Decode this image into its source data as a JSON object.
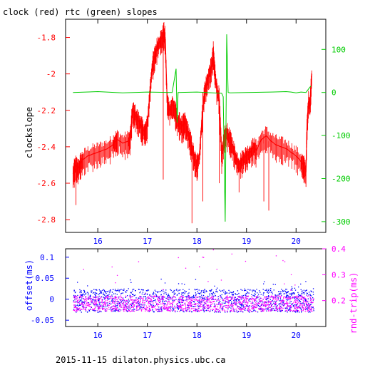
{
  "chart_data": [
    {
      "type": "line",
      "title": "clock (red) rtc (green) slopes",
      "xlabel": "",
      "ylabel": "clockslope",
      "xlim": [
        15.35,
        20.6
      ],
      "ylim": [
        -2.87,
        -1.7
      ],
      "xticks": [
        16,
        17,
        18,
        19,
        20
      ],
      "yticks": [
        -1.8,
        -2,
        -2.2,
        -2.4,
        -2.6,
        -2.8
      ],
      "ytick_labels": [
        "-1.8",
        "-2",
        "-2.2",
        "-2.4",
        "-2.6",
        "-2.8"
      ],
      "y2label": "",
      "y2lim": [
        -325,
        170
      ],
      "y2ticks": [
        100,
        0,
        -100,
        -200,
        -300
      ],
      "y2tick_labels": [
        "100",
        "0",
        "-100",
        "-200",
        "-300"
      ],
      "colors": {
        "clock": "#ff0000",
        "rtc": "#00cc00",
        "axis_left": "#ff0000",
        "axis_right": "#00cc00",
        "frame": "#000000"
      },
      "series": [
        {
          "key": "clock",
          "axis": "left",
          "x": [
            15.5,
            15.55,
            15.6,
            15.65,
            15.7,
            15.8,
            15.9,
            16.0,
            16.1,
            16.2,
            16.3,
            16.35,
            16.4,
            16.5,
            16.6,
            16.65,
            16.7,
            16.75,
            16.8,
            16.85,
            16.9,
            16.95,
            17.0,
            17.05,
            17.1,
            17.15,
            17.2,
            17.25,
            17.3,
            17.33,
            17.36,
            17.4,
            17.45,
            17.5,
            17.55,
            17.6,
            17.65,
            17.7,
            17.75,
            17.8,
            17.85,
            17.9,
            17.95,
            18.0,
            18.05,
            18.1,
            18.15,
            18.2,
            18.25,
            18.3,
            18.33,
            18.36,
            18.4,
            18.45,
            18.5,
            18.55,
            18.6,
            18.65,
            18.7,
            18.75,
            18.8,
            18.85,
            18.9,
            18.95,
            19.0,
            19.05,
            19.1,
            19.15,
            19.2,
            19.3,
            19.4,
            19.5,
            19.6,
            19.7,
            19.8,
            19.9,
            20.0,
            20.1,
            20.15,
            20.2,
            20.22,
            20.25,
            20.28,
            20.3,
            20.32
          ],
          "y": [
            -2.55,
            -2.5,
            -2.52,
            -2.49,
            -2.47,
            -2.45,
            -2.44,
            -2.43,
            -2.42,
            -2.41,
            -2.39,
            -2.37,
            -2.36,
            -2.38,
            -2.37,
            -2.36,
            -2.2,
            -2.22,
            -2.25,
            -2.27,
            -2.3,
            -2.32,
            -2.28,
            -2.1,
            -1.95,
            -1.9,
            -1.85,
            -1.82,
            -1.8,
            -1.77,
            -1.8,
            -2.15,
            -2.2,
            -2.17,
            -2.19,
            -2.25,
            -2.27,
            -2.29,
            -2.26,
            -2.3,
            -2.35,
            -2.4,
            -2.47,
            -2.5,
            -2.45,
            -2.25,
            -2.1,
            -2.05,
            -2.0,
            -1.95,
            -1.88,
            -1.98,
            -2.08,
            -2.13,
            -2.45,
            -2.35,
            -2.32,
            -2.35,
            -2.38,
            -2.43,
            -2.47,
            -2.5,
            -2.48,
            -2.46,
            -2.45,
            -2.44,
            -2.42,
            -2.4,
            -2.42,
            -2.36,
            -2.34,
            -2.37,
            -2.39,
            -2.4,
            -2.41,
            -2.43,
            -2.45,
            -2.48,
            -2.5,
            -2.53,
            -2.3,
            -2.15,
            -2.17,
            -2.08,
            -2.0
          ]
        },
        {
          "key": "rtc",
          "axis": "right",
          "x": [
            15.5,
            16.0,
            16.5,
            17.0,
            17.5,
            17.58,
            17.6,
            17.62,
            18.0,
            18.5,
            18.53,
            18.57,
            18.6,
            18.63,
            18.67,
            19.0,
            19.5,
            19.8,
            19.9,
            20.0,
            20.1,
            20.2,
            20.25,
            20.3
          ],
          "y": [
            0,
            2,
            -1,
            1,
            0,
            55,
            -70,
            0,
            1,
            -2,
            -10,
            -300,
            135,
            0,
            -1,
            0,
            1,
            2,
            1,
            -1,
            1,
            0,
            8,
            15
          ]
        }
      ]
    },
    {
      "type": "scatter",
      "title": "",
      "xlabel": "",
      "ylabel": "offset(ms)",
      "xlim": [
        15.35,
        20.6
      ],
      "ylim": [
        -0.065,
        0.12
      ],
      "xticks": [
        16,
        17,
        18,
        19,
        20
      ],
      "yticks": [
        0.1,
        0.05,
        0,
        -0.05
      ],
      "ytick_labels": [
        "0.1",
        "0.05",
        "0",
        "-0.05"
      ],
      "y2label": "rnd-trip(ms)",
      "y2lim": [
        0.1,
        0.4
      ],
      "y2ticks": [
        0.4,
        0.3,
        0.2
      ],
      "y2tick_labels": [
        "0.4",
        "0.3",
        "0.2"
      ],
      "colors": {
        "offset": "#0000ff",
        "roundtrip": "#ff00ff",
        "axis_left": "#0000ff",
        "axis_right": "#ff00ff"
      },
      "series": [
        {
          "key": "offset",
          "axis": "left",
          "x_range": [
            15.5,
            20.35
          ],
          "band": [
            -0.03,
            0.025
          ],
          "outliers_up_to": 0.05
        },
        {
          "key": "roundtrip",
          "axis": "right",
          "x_range": [
            15.5,
            20.35
          ],
          "band": [
            0.16,
            0.22
          ],
          "outliers_up_to": 0.4
        }
      ]
    }
  ],
  "footer": {
    "caption": "2015-11-15  dilaton.physics.ubc.ca"
  }
}
